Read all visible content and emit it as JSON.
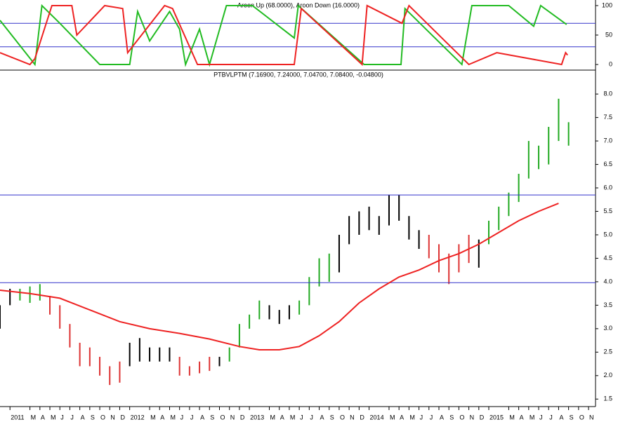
{
  "chart_data": [
    {
      "type": "line",
      "title": "Aroon Up (68.0000), Aroon Down (16.0000)",
      "xlim": [
        0,
        59.7
      ],
      "ylim": [
        -9.5,
        109.5
      ],
      "yticks": [
        0,
        50,
        100
      ],
      "hlines": [
        70,
        30
      ],
      "hline_color": "#3333cc",
      "series": [
        {
          "color": "#22bb22",
          "x": [
            0,
            3.5,
            4.2,
            6,
            10,
            13,
            13.8,
            15,
            17,
            18,
            18.6,
            20,
            21,
            22.7,
            25.3,
            29.5,
            29.9,
            36.5,
            40.2,
            40.6,
            46.3,
            47.3,
            51,
            53.5,
            54.2,
            56.8
          ],
          "values": [
            75,
            0,
            100,
            70,
            0,
            0,
            90,
            40,
            90,
            60,
            0,
            60,
            0,
            100,
            100,
            45,
            100,
            0,
            0,
            95,
            0,
            100,
            100,
            65,
            100,
            68
          ]
        },
        {
          "color": "#ee2222",
          "x": [
            0,
            3,
            3.5,
            5.2,
            7.2,
            7.7,
            10.5,
            12.3,
            12.8,
            16.5,
            17.3,
            19.8,
            22.5,
            29.5,
            30.2,
            36.3,
            36.8,
            40.3,
            41,
            47,
            49.8,
            56.3,
            56.7,
            56.9
          ],
          "values": [
            20,
            0,
            10,
            100,
            100,
            50,
            100,
            95,
            20,
            100,
            95,
            0,
            0,
            0,
            95,
            0,
            100,
            70,
            100,
            0,
            20,
            0,
            20,
            16
          ]
        }
      ]
    },
    {
      "type": "ohlc",
      "title": "PTBVLPTM (7.16900, 7.24000, 7.04700, 7.08400, -0.04800)",
      "xlim": [
        0,
        59.7
      ],
      "ylim": [
        1.34,
        8.51
      ],
      "yticks": [
        1.5,
        {
          "value": 2,
          "label": "2.0"
        },
        2.5,
        {
          "value": 3,
          "label": "3.0"
        },
        3.5,
        {
          "value": 4,
          "label": "4.0"
        },
        4.5,
        {
          "value": 5,
          "label": "5.0"
        },
        5.5,
        {
          "value": 6,
          "label": "6.0"
        },
        6.5,
        {
          "value": 7,
          "label": "7.0"
        },
        7.5,
        {
          "value": 8,
          "label": "8.0"
        }
      ],
      "xticks": [
        {
          "value": 1,
          "label": "2011"
        },
        {
          "value": 3,
          "label": "M"
        },
        {
          "value": 4,
          "label": "A"
        },
        {
          "value": 5,
          "label": "M"
        },
        {
          "value": 6,
          "label": "J"
        },
        {
          "value": 7,
          "label": "J"
        },
        {
          "value": 8,
          "label": "A"
        },
        {
          "value": 9,
          "label": "S"
        },
        {
          "value": 10,
          "label": "O"
        },
        {
          "value": 11,
          "label": "N"
        },
        {
          "value": 12,
          "label": "D"
        },
        {
          "value": 13,
          "label": "2012"
        },
        {
          "value": 15,
          "label": "M"
        },
        {
          "value": 16,
          "label": "A"
        },
        {
          "value": 17,
          "label": "M"
        },
        {
          "value": 18,
          "label": "J"
        },
        {
          "value": 19,
          "label": "J"
        },
        {
          "value": 20,
          "label": "A"
        },
        {
          "value": 21,
          "label": "S"
        },
        {
          "value": 22,
          "label": "O"
        },
        {
          "value": 23,
          "label": "N"
        },
        {
          "value": 24,
          "label": "D"
        },
        {
          "value": 25,
          "label": "2013"
        },
        {
          "value": 27,
          "label": "M"
        },
        {
          "value": 28,
          "label": "A"
        },
        {
          "value": 29,
          "label": "M"
        },
        {
          "value": 30,
          "label": "J"
        },
        {
          "value": 31,
          "label": "J"
        },
        {
          "value": 32,
          "label": "A"
        },
        {
          "value": 33,
          "label": "S"
        },
        {
          "value": 34,
          "label": "O"
        },
        {
          "value": 35,
          "label": "N"
        },
        {
          "value": 36,
          "label": "D"
        },
        {
          "value": 37,
          "label": "2014"
        },
        {
          "value": 39,
          "label": "M"
        },
        {
          "value": 40,
          "label": "A"
        },
        {
          "value": 41,
          "label": "M"
        },
        {
          "value": 42,
          "label": "J"
        },
        {
          "value": 43,
          "label": "J"
        },
        {
          "value": 44,
          "label": "A"
        },
        {
          "value": 45,
          "label": "S"
        },
        {
          "value": 46,
          "label": "O"
        },
        {
          "value": 47,
          "label": "N"
        },
        {
          "value": 48,
          "label": "D"
        },
        {
          "value": 49,
          "label": "2015"
        },
        {
          "value": 51,
          "label": "M"
        },
        {
          "value": 52,
          "label": "A"
        },
        {
          "value": 53,
          "label": "M"
        },
        {
          "value": 54,
          "label": "J"
        },
        {
          "value": 55,
          "label": "J"
        },
        {
          "value": 56,
          "label": "A"
        },
        {
          "value": 57,
          "label": "S"
        },
        {
          "value": 58,
          "label": "O"
        },
        {
          "value": 59,
          "label": "N"
        }
      ],
      "x": [
        0,
        1,
        2,
        3,
        4,
        5,
        6,
        7,
        8,
        9,
        10,
        11,
        12,
        13,
        14,
        15,
        16,
        17,
        18,
        19,
        20,
        21,
        22,
        23,
        24,
        25,
        26,
        27,
        28,
        29,
        30,
        31,
        32,
        33,
        34,
        35,
        36,
        37,
        38,
        39,
        40,
        41,
        42,
        43,
        44,
        45,
        46,
        47,
        48,
        49,
        50,
        51,
        52,
        53,
        54,
        55,
        56,
        57
      ],
      "high": [
        3.5,
        3.85,
        3.85,
        3.9,
        3.95,
        3.7,
        3.5,
        3.1,
        2.7,
        2.6,
        2.4,
        2.2,
        2.3,
        2.7,
        2.8,
        2.6,
        2.6,
        2.6,
        2.4,
        2.2,
        2.3,
        2.4,
        2.4,
        2.6,
        3.1,
        3.3,
        3.6,
        3.5,
        3.4,
        3.5,
        3.6,
        4.1,
        4.5,
        4.6,
        5.0,
        5.4,
        5.5,
        5.6,
        5.4,
        5.85,
        5.85,
        5.4,
        5.1,
        5.0,
        4.8,
        4.6,
        4.8,
        5.0,
        4.9,
        5.3,
        5.6,
        5.9,
        6.3,
        7.0,
        6.9,
        7.3,
        7.9,
        7.4
      ],
      "low": [
        3.0,
        3.5,
        3.6,
        3.55,
        3.6,
        3.3,
        3.0,
        2.6,
        2.2,
        2.2,
        2.0,
        1.8,
        1.85,
        2.2,
        2.3,
        2.3,
        2.3,
        2.3,
        2.0,
        2.0,
        2.05,
        2.1,
        2.2,
        2.3,
        2.6,
        3.0,
        3.2,
        3.2,
        3.1,
        3.2,
        3.3,
        3.5,
        3.9,
        4.0,
        4.2,
        4.8,
        5.0,
        5.1,
        5.0,
        5.2,
        5.3,
        4.9,
        4.7,
        4.5,
        4.2,
        3.95,
        4.2,
        4.4,
        4.3,
        4.8,
        5.1,
        5.4,
        5.7,
        6.2,
        6.4,
        6.5,
        7.0,
        6.9
      ],
      "colors": [
        "#000000",
        "#000000",
        "#22aa22",
        "#22aa22",
        "#22aa22",
        "#dd3333",
        "#dd3333",
        "#dd3333",
        "#dd3333",
        "#dd3333",
        "#dd3333",
        "#dd3333",
        "#dd3333",
        "#000000",
        "#000000",
        "#000000",
        "#000000",
        "#000000",
        "#dd3333",
        "#dd3333",
        "#dd3333",
        "#dd3333",
        "#000000",
        "#22aa22",
        "#22aa22",
        "#22aa22",
        "#22aa22",
        "#000000",
        "#000000",
        "#000000",
        "#22aa22",
        "#22aa22",
        "#22aa22",
        "#22aa22",
        "#000000",
        "#000000",
        "#000000",
        "#000000",
        "#000000",
        "#000000",
        "#000000",
        "#000000",
        "#000000",
        "#dd3333",
        "#dd3333",
        "#dd3333",
        "#dd3333",
        "#dd3333",
        "#000000",
        "#22aa22",
        "#22aa22",
        "#22aa22",
        "#22aa22",
        "#22aa22",
        "#22aa22",
        "#22aa22",
        "#22aa22",
        "#22aa22"
      ],
      "hlines": [
        5.85,
        3.98
      ],
      "hline_color": "#3333cc",
      "series": [
        {
          "color": "#ee2222",
          "x": [
            0,
            3,
            6,
            9,
            12,
            15,
            18,
            21,
            24,
            26,
            28,
            30,
            32,
            34,
            36,
            38,
            40,
            42,
            44,
            46,
            48,
            50,
            52,
            54,
            56
          ],
          "values": [
            3.82,
            3.75,
            3.65,
            3.4,
            3.15,
            3.0,
            2.9,
            2.78,
            2.62,
            2.55,
            2.55,
            2.62,
            2.85,
            3.15,
            3.55,
            3.85,
            4.1,
            4.25,
            4.45,
            4.6,
            4.8,
            5.05,
            5.3,
            5.5,
            5.67
          ]
        }
      ]
    }
  ]
}
